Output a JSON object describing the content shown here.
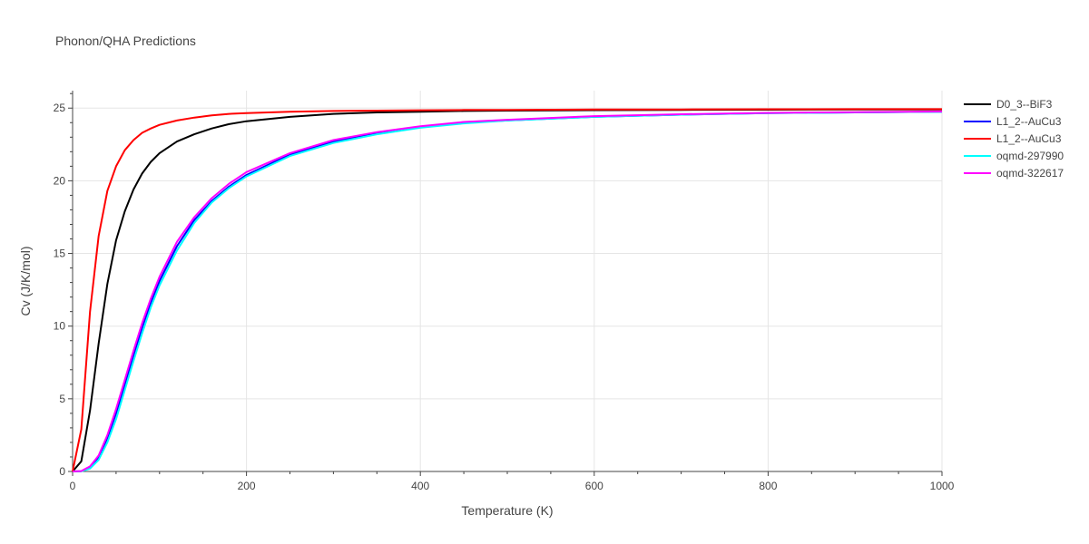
{
  "chart_data": {
    "type": "line",
    "title": "Phonon/QHA Predictions",
    "xlabel": "Temperature (K)",
    "ylabel": "Cv (J/K/mol)",
    "xlim": [
      0,
      1000
    ],
    "ylim": [
      0,
      26.2
    ],
    "xticks": [
      0,
      200,
      400,
      600,
      800,
      1000
    ],
    "yticks": [
      0,
      5,
      10,
      15,
      20,
      25
    ],
    "grid": true,
    "legend_position": "top-right",
    "x": [
      0,
      10,
      20,
      30,
      40,
      50,
      60,
      70,
      80,
      90,
      100,
      120,
      140,
      160,
      180,
      200,
      250,
      300,
      350,
      400,
      450,
      500,
      600,
      700,
      800,
      900,
      1000
    ],
    "series": [
      {
        "name": "D0_3--BiF3",
        "color": "#000000",
        "values": [
          0,
          0.7,
          4.2,
          8.8,
          12.9,
          15.9,
          17.9,
          19.4,
          20.5,
          21.3,
          21.9,
          22.7,
          23.2,
          23.6,
          23.9,
          24.1,
          24.4,
          24.6,
          24.7,
          24.75,
          24.8,
          24.83,
          24.86,
          24.88,
          24.89,
          24.9,
          24.9
        ]
      },
      {
        "name": "L1_2--AuCu3",
        "color": "#0000ff",
        "values": [
          0,
          0.02,
          0.3,
          1.0,
          2.3,
          4.0,
          6.0,
          8.0,
          9.9,
          11.6,
          13.1,
          15.5,
          17.3,
          18.6,
          19.6,
          20.4,
          21.8,
          22.7,
          23.3,
          23.7,
          24.0,
          24.15,
          24.4,
          24.55,
          24.65,
          24.7,
          24.75
        ]
      },
      {
        "name": "L1_2--AuCu3",
        "color": "#ff0000",
        "values": [
          0,
          2.9,
          11.0,
          16.2,
          19.3,
          21.0,
          22.1,
          22.8,
          23.3,
          23.6,
          23.85,
          24.15,
          24.35,
          24.5,
          24.6,
          24.65,
          24.75,
          24.8,
          24.83,
          24.85,
          24.87,
          24.88,
          24.9,
          24.91,
          24.92,
          24.93,
          24.93
        ]
      },
      {
        "name": "oqmd-297990",
        "color": "#00ffff",
        "values": [
          0,
          0.01,
          0.2,
          0.8,
          2.0,
          3.6,
          5.6,
          7.6,
          9.5,
          11.3,
          12.8,
          15.2,
          17.1,
          18.5,
          19.5,
          20.3,
          21.7,
          22.6,
          23.2,
          23.65,
          23.95,
          24.15,
          24.4,
          24.55,
          24.65,
          24.7,
          24.75
        ]
      },
      {
        "name": "oqmd-322617",
        "color": "#ff00ff",
        "values": [
          0,
          0.03,
          0.35,
          1.1,
          2.5,
          4.3,
          6.3,
          8.3,
          10.2,
          11.9,
          13.4,
          15.8,
          17.5,
          18.8,
          19.8,
          20.6,
          21.9,
          22.8,
          23.35,
          23.75,
          24.05,
          24.2,
          24.45,
          24.58,
          24.67,
          24.72,
          24.77
        ]
      }
    ]
  }
}
